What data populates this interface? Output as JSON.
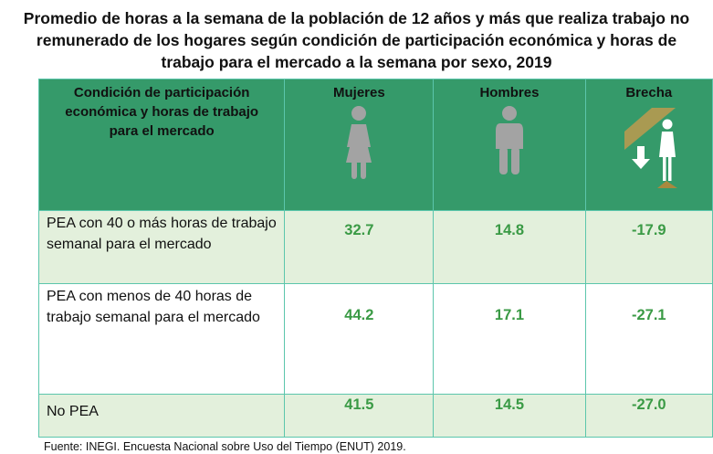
{
  "title": "Promedio de horas a la semana de la población de 12 años y más que realiza trabajo no remunerado de los hogares según condición de participación económica y horas de trabajo para el mercado a la semana por sexo, 2019",
  "header": {
    "condition": "Condición de participación económica y horas de trabajo para el mercado",
    "women": "Mujeres",
    "men": "Hombres",
    "gap": "Brecha",
    "icons": [
      "woman-icon",
      "man-icon",
      "gender-gap-icon"
    ]
  },
  "rows": [
    {
      "label": "PEA con 40 o más horas de trabajo semanal para el mercado",
      "women": "32.7",
      "men": "14.8",
      "gap": "-17.9"
    },
    {
      "label": "PEA con menos de 40 horas de trabajo semanal para el mercado",
      "women": "44.2",
      "men": "17.1",
      "gap": "-27.1"
    },
    {
      "label": "No PEA",
      "women": "41.5",
      "men": "14.5",
      "gap": "-27.0"
    }
  ],
  "source": "Fuente: INEGI. Encuesta Nacional sobre Uso del Tiempo (ENUT) 2019.",
  "colors": {
    "header_bg": "#359a6a",
    "row_alt": "#e3f0dc",
    "value": "#3a9a45",
    "border": "#5cc6ac"
  }
}
